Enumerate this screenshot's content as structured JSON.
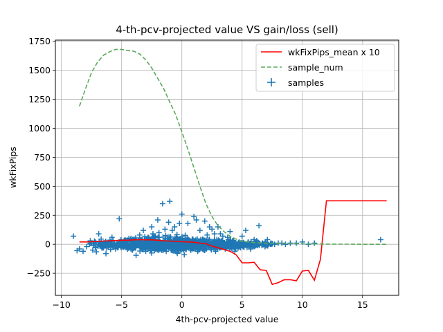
{
  "chart_data": {
    "type": "line",
    "title": "4-th-pcv-projected value VS gain/loss (sell)",
    "xlabel": "4th-pcv-projected value",
    "ylabel": "wkFixPips",
    "xlim": [
      -10.5,
      18.0
    ],
    "ylim": [
      -440,
      1760
    ],
    "xticks": [
      -10,
      -5,
      0,
      5,
      10,
      15
    ],
    "yticks": [
      -250,
      0,
      250,
      500,
      750,
      1000,
      1250,
      1500,
      1750
    ],
    "grid": true,
    "legend_position": "top-right",
    "series": [
      {
        "name": "wkFixPips_mean x 10",
        "style": "solid",
        "color": "#ff0000",
        "x": [
          -8.5,
          -8.0,
          -7.5,
          -7.0,
          -6.5,
          -6.0,
          -5.5,
          -5.0,
          -4.5,
          -4.0,
          -3.5,
          -3.0,
          -2.5,
          -2.0,
          -1.5,
          -1.0,
          -0.5,
          0.0,
          0.5,
          1.0,
          1.5,
          2.0,
          2.5,
          3.0,
          3.5,
          4.0,
          4.5,
          5.0,
          5.5,
          6.0,
          6.5,
          7.0,
          7.5,
          8.0,
          8.5,
          9.0,
          9.5,
          10.0,
          10.5,
          11.0,
          11.5,
          12.0,
          12.5,
          13.0,
          13.5,
          14.0,
          14.5,
          15.0,
          15.5,
          16.0,
          16.5,
          17.0
        ],
        "y": [
          20,
          20,
          22,
          25,
          28,
          30,
          32,
          35,
          35,
          38,
          40,
          38,
          38,
          35,
          30,
          28,
          25,
          22,
          20,
          18,
          10,
          5,
          -15,
          -30,
          -45,
          -60,
          -90,
          -160,
          -160,
          -155,
          -220,
          -225,
          -345,
          -330,
          -305,
          -305,
          -315,
          -230,
          -225,
          -310,
          -130,
          375,
          375,
          375,
          375,
          375,
          375,
          375,
          375,
          375,
          375,
          375
        ]
      },
      {
        "name": "sample_num",
        "style": "dashed",
        "color": "#5aaa5a",
        "x": [
          -8.5,
          -8.0,
          -7.5,
          -7.0,
          -6.5,
          -6.0,
          -5.5,
          -5.0,
          -4.5,
          -4.0,
          -3.5,
          -3.0,
          -2.5,
          -2.0,
          -1.5,
          -1.0,
          -0.5,
          0.0,
          0.5,
          1.0,
          1.5,
          2.0,
          2.5,
          3.0,
          3.5,
          4.0,
          4.5,
          5.0,
          5.5,
          6.0,
          6.5,
          7.0,
          8.0,
          9.0,
          10.0,
          11.0,
          12.0,
          13.0,
          14.0,
          15.0,
          16.0,
          17.0
        ],
        "y": [
          1190,
          1340,
          1480,
          1570,
          1630,
          1660,
          1680,
          1680,
          1670,
          1665,
          1640,
          1590,
          1520,
          1430,
          1340,
          1225,
          1115,
          970,
          820,
          660,
          500,
          350,
          240,
          160,
          110,
          70,
          45,
          25,
          20,
          15,
          12,
          10,
          8,
          6,
          4,
          3,
          2,
          1,
          1,
          0,
          0,
          0
        ]
      }
    ],
    "scatter": {
      "name": "samples",
      "marker": "+",
      "color": "#1f77b4",
      "outliers": [
        [
          -9.0,
          70
        ],
        [
          -8.7,
          -55
        ],
        [
          -8.5,
          -40
        ],
        [
          -8.2,
          -60
        ],
        [
          -7.9,
          -20
        ],
        [
          -7.6,
          30
        ],
        [
          -7.4,
          -50
        ],
        [
          -7.1,
          -65
        ],
        [
          -6.9,
          90
        ],
        [
          -6.7,
          45
        ],
        [
          -6.5,
          -30
        ],
        [
          -6.3,
          -80
        ],
        [
          -6.0,
          10
        ],
        [
          -5.8,
          60
        ],
        [
          -5.5,
          -40
        ],
        [
          -5.2,
          220
        ],
        [
          -5.0,
          -15
        ],
        [
          -4.7,
          20
        ],
        [
          -4.4,
          50
        ],
        [
          -4.1,
          -50
        ],
        [
          -3.8,
          -95
        ],
        [
          -3.5,
          80
        ],
        [
          -3.2,
          120
        ],
        [
          -3.0,
          -60
        ],
        [
          -2.8,
          60
        ],
        [
          -2.5,
          150
        ],
        [
          -2.4,
          90
        ],
        [
          -2.2,
          -40
        ],
        [
          -2.0,
          210
        ],
        [
          -1.9,
          100
        ],
        [
          -1.7,
          -50
        ],
        [
          -1.6,
          350
        ],
        [
          -1.4,
          130
        ],
        [
          -1.3,
          -60
        ],
        [
          -1.1,
          190
        ],
        [
          -1.0,
          370
        ],
        [
          -0.8,
          120
        ],
        [
          -0.6,
          150
        ],
        [
          -0.4,
          -70
        ],
        [
          -0.2,
          180
        ],
        [
          0.0,
          260
        ],
        [
          0.2,
          -90
        ],
        [
          0.5,
          180
        ],
        [
          0.7,
          -40
        ],
        [
          1.0,
          240
        ],
        [
          1.2,
          210
        ],
        [
          1.5,
          120
        ],
        [
          1.7,
          -40
        ],
        [
          1.9,
          200
        ],
        [
          2.1,
          80
        ],
        [
          2.3,
          150
        ],
        [
          2.5,
          130
        ],
        [
          2.7,
          90
        ],
        [
          2.8,
          -60
        ],
        [
          3.0,
          150
        ],
        [
          3.2,
          90
        ],
        [
          3.4,
          70
        ],
        [
          3.6,
          -40
        ],
        [
          3.8,
          60
        ],
        [
          4.0,
          110
        ],
        [
          4.2,
          30
        ],
        [
          4.4,
          -60
        ],
        [
          4.7,
          -20
        ],
        [
          5.0,
          70
        ],
        [
          5.3,
          120
        ],
        [
          5.5,
          20
        ],
        [
          5.7,
          -40
        ],
        [
          6.0,
          40
        ],
        [
          6.2,
          30
        ],
        [
          6.4,
          160
        ],
        [
          6.7,
          10
        ],
        [
          6.9,
          -20
        ],
        [
          7.1,
          40
        ],
        [
          7.4,
          10
        ],
        [
          7.7,
          0
        ],
        [
          8.0,
          10
        ],
        [
          8.3,
          10
        ],
        [
          8.6,
          0
        ],
        [
          9.0,
          10
        ],
        [
          9.5,
          10
        ],
        [
          10.0,
          20
        ],
        [
          10.5,
          0
        ],
        [
          11.0,
          10
        ],
        [
          16.5,
          40
        ]
      ],
      "cluster": {
        "x_range": [
          -8.0,
          8.0
        ],
        "y_center": 0,
        "y_spread": 55
      }
    }
  }
}
